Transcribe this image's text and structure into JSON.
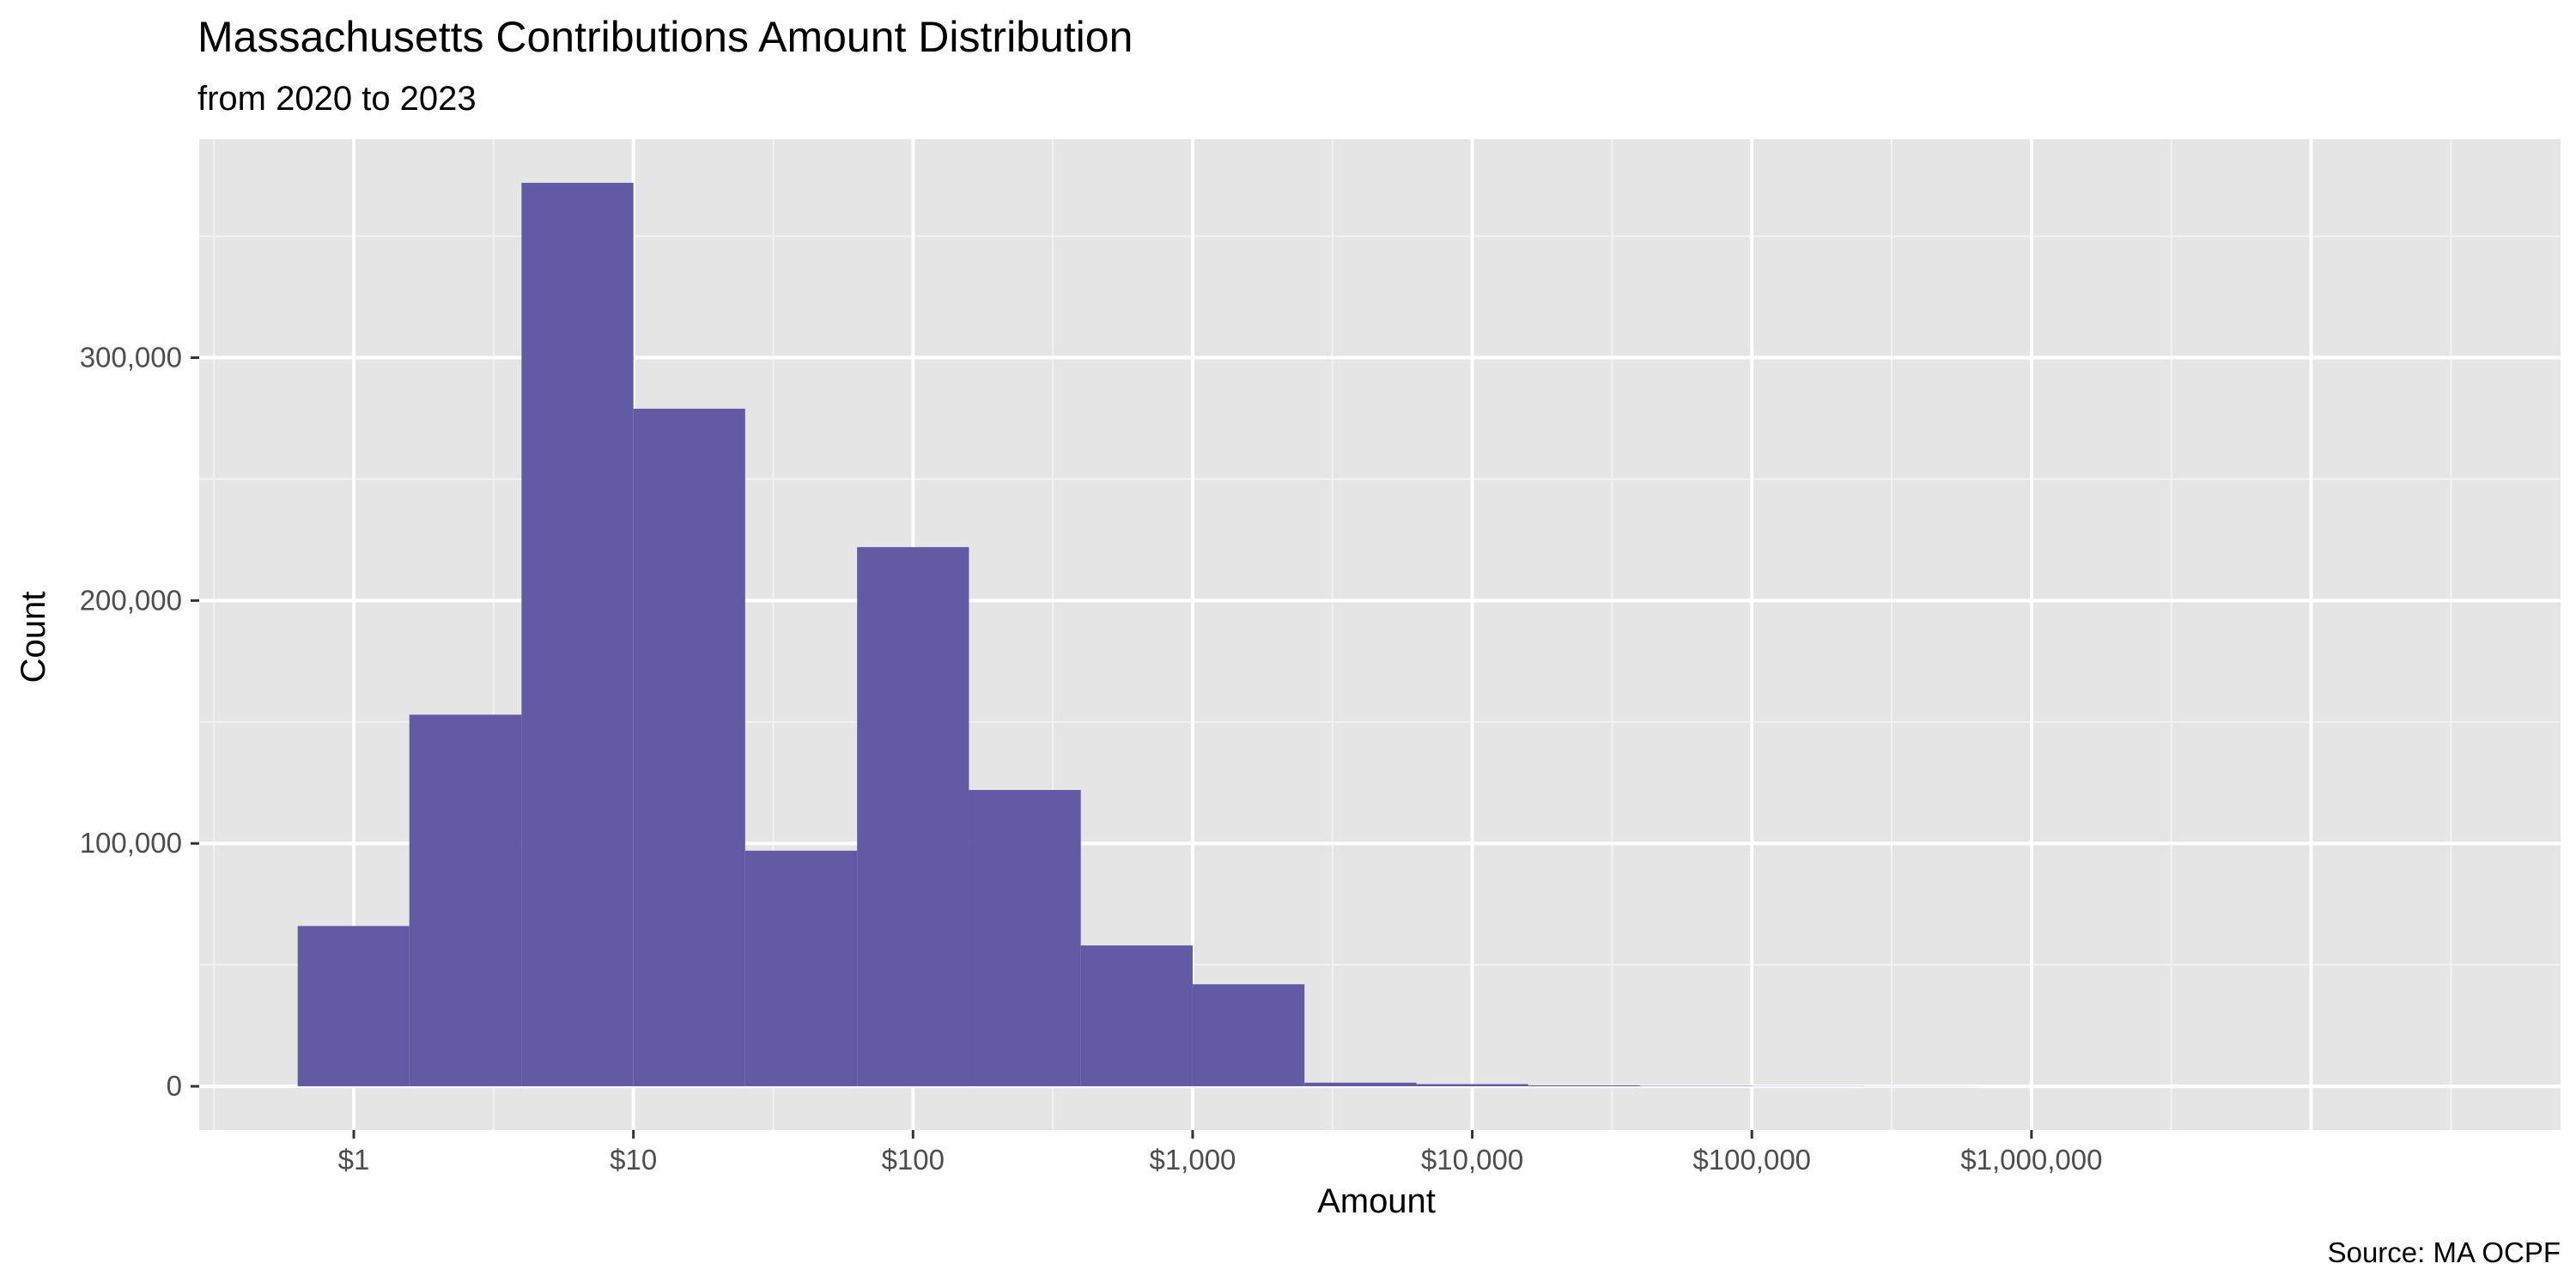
{
  "chart_data": {
    "type": "bar",
    "title": "Massachusetts Contributions Amount Distribution",
    "subtitle": "from 2020 to 2023",
    "caption": "Source: MA OCPF",
    "xlabel": "Amount",
    "ylabel": "Count",
    "x_scale": "log10",
    "x_ticks": [
      {
        "value": 1,
        "label": "$1"
      },
      {
        "value": 10,
        "label": "$10"
      },
      {
        "value": 100,
        "label": "$100"
      },
      {
        "value": 1000,
        "label": "$1,000"
      },
      {
        "value": 10000,
        "label": "$10,000"
      },
      {
        "value": 100000,
        "label": "$100,000"
      },
      {
        "value": 1000000,
        "label": "$1,000,000"
      }
    ],
    "y_ticks": [
      {
        "value": 0,
        "label": "0"
      },
      {
        "value": 100000,
        "label": "100,000"
      },
      {
        "value": 200000,
        "label": "200,000"
      },
      {
        "value": 300000,
        "label": "300,000"
      }
    ],
    "xlim": [
      0.28,
      78000000
    ],
    "ylim": [
      -18000,
      390000
    ],
    "grid": true,
    "bar_color": "#625AA4",
    "panel_color": "#E5E5E5",
    "bins": [
      {
        "x_from": 0.63,
        "x_to": 1.58,
        "count": 66000
      },
      {
        "x_from": 1.58,
        "x_to": 3.98,
        "count": 153000
      },
      {
        "x_from": 3.98,
        "x_to": 10.0,
        "count": 372000
      },
      {
        "x_from": 10.0,
        "x_to": 25.1,
        "count": 279000
      },
      {
        "x_from": 25.1,
        "x_to": 63.1,
        "count": 97000
      },
      {
        "x_from": 63.1,
        "x_to": 158.5,
        "count": 222000
      },
      {
        "x_from": 158.5,
        "x_to": 398.1,
        "count": 122000
      },
      {
        "x_from": 398.1,
        "x_to": 1000,
        "count": 58000
      },
      {
        "x_from": 1000,
        "x_to": 2512,
        "count": 42000
      },
      {
        "x_from": 2512,
        "x_to": 6310,
        "count": 1500
      },
      {
        "x_from": 6310,
        "x_to": 15849,
        "count": 900
      },
      {
        "x_from": 15849,
        "x_to": 39811,
        "count": 400
      },
      {
        "x_from": 39811,
        "x_to": 100000,
        "count": 200
      },
      {
        "x_from": 100000,
        "x_to": 251189,
        "count": 100
      },
      {
        "x_from": 251189,
        "x_to": 630957,
        "count": 50
      }
    ]
  }
}
